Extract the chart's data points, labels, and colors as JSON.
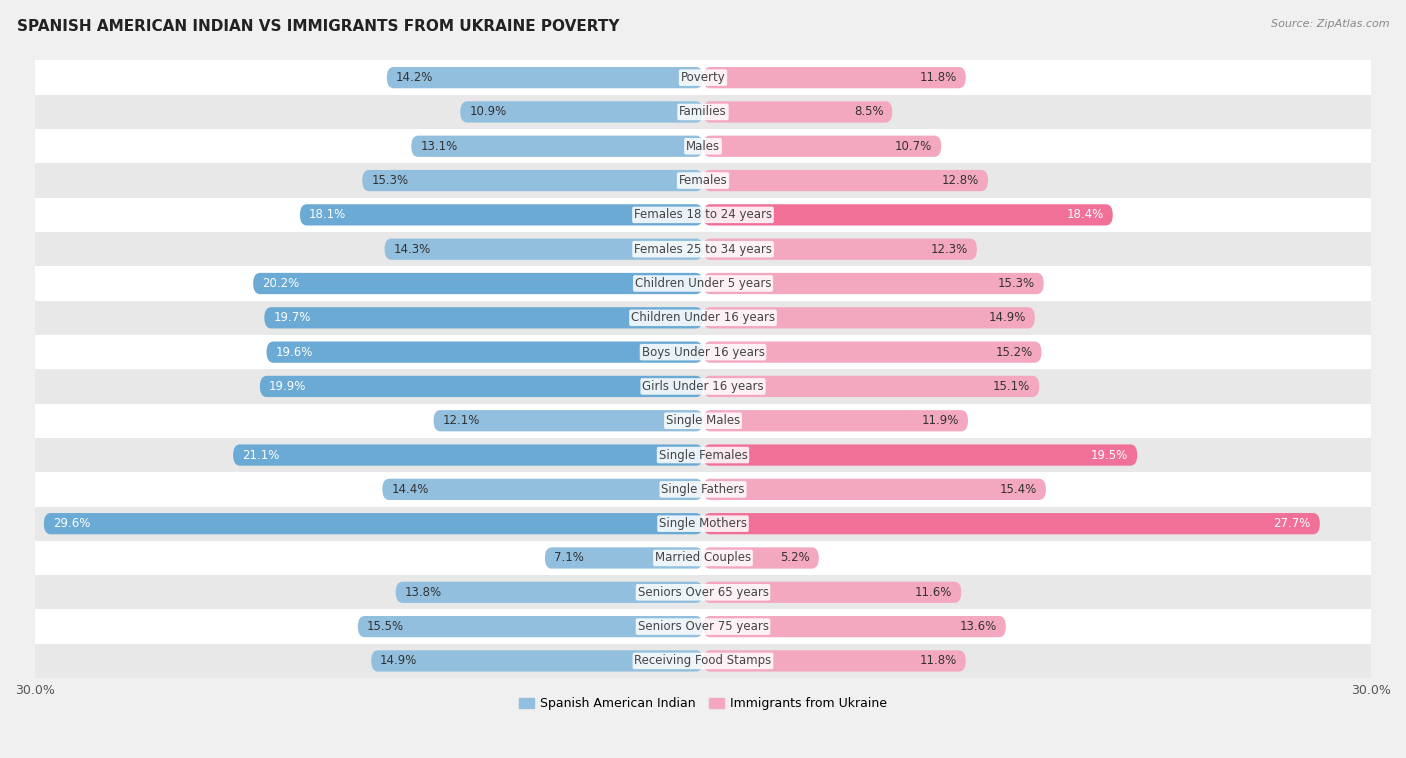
{
  "title": "Spanish American Indian vs Immigrants from Ukraine Poverty",
  "source": "Source: ZipAtlas.com",
  "categories": [
    "Poverty",
    "Families",
    "Males",
    "Females",
    "Females 18 to 24 years",
    "Females 25 to 34 years",
    "Children Under 5 years",
    "Children Under 16 years",
    "Boys Under 16 years",
    "Girls Under 16 years",
    "Single Males",
    "Single Females",
    "Single Fathers",
    "Single Mothers",
    "Married Couples",
    "Seniors Over 65 years",
    "Seniors Over 75 years",
    "Receiving Food Stamps"
  ],
  "left_values": [
    14.2,
    10.9,
    13.1,
    15.3,
    18.1,
    14.3,
    20.2,
    19.7,
    19.6,
    19.9,
    12.1,
    21.1,
    14.4,
    29.6,
    7.1,
    13.8,
    15.5,
    14.9
  ],
  "right_values": [
    11.8,
    8.5,
    10.7,
    12.8,
    18.4,
    12.3,
    15.3,
    14.9,
    15.2,
    15.1,
    11.9,
    19.5,
    15.4,
    27.7,
    5.2,
    11.6,
    13.6,
    11.8
  ],
  "left_color_normal": "#92bfdd",
  "left_color_highlight": "#6aaad4",
  "right_color_normal": "#f4a8bf",
  "right_color_highlight": "#f07098",
  "highlight_threshold": 17.0,
  "left_label": "Spanish American Indian",
  "right_label": "Immigrants from Ukraine",
  "x_max": 30.0,
  "bg_color": "#f0f0f0",
  "row_color_light": "#ffffff",
  "row_color_dark": "#e8e8e8",
  "title_fontsize": 11,
  "source_fontsize": 8,
  "cat_fontsize": 8.5,
  "val_fontsize": 8.5
}
